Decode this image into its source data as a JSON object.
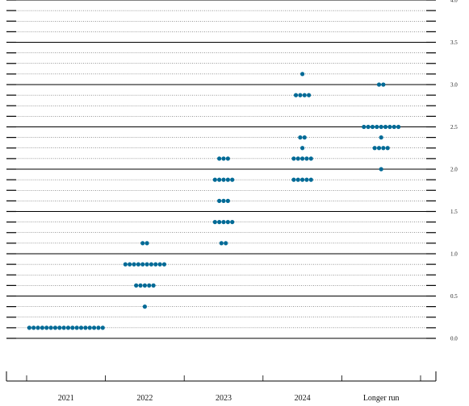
{
  "chart_data": {
    "type": "scatter",
    "title": "",
    "xlabel": "",
    "ylabel": "",
    "ylim": [
      -0.1,
      4.0
    ],
    "y_ticks": [
      "0.0",
      "0.5",
      "1.0",
      "1.5",
      "2.0",
      "2.5",
      "3.0",
      "3.5",
      "4.0"
    ],
    "categories": [
      "2021",
      "2022",
      "2023",
      "2024",
      "Longer run"
    ],
    "grid": true,
    "dot_color": "#006a96",
    "series": [
      {
        "category": "2021",
        "points": [
          {
            "rate": 0.125,
            "count": 18
          }
        ]
      },
      {
        "category": "2022",
        "points": [
          {
            "rate": 0.375,
            "count": 1
          },
          {
            "rate": 0.625,
            "count": 5
          },
          {
            "rate": 0.875,
            "count": 10
          },
          {
            "rate": 1.125,
            "count": 2
          }
        ]
      },
      {
        "category": "2023",
        "points": [
          {
            "rate": 1.125,
            "count": 2
          },
          {
            "rate": 1.375,
            "count": 5
          },
          {
            "rate": 1.625,
            "count": 3
          },
          {
            "rate": 1.875,
            "count": 5
          },
          {
            "rate": 2.125,
            "count": 3
          }
        ]
      },
      {
        "category": "2024",
        "points": [
          {
            "rate": 1.875,
            "count": 5
          },
          {
            "rate": 2.125,
            "count": 5
          },
          {
            "rate": 2.25,
            "count": 1
          },
          {
            "rate": 2.375,
            "count": 2
          },
          {
            "rate": 2.875,
            "count": 4
          },
          {
            "rate": 3.125,
            "count": 1
          }
        ]
      },
      {
        "category": "Longer run",
        "points": [
          {
            "rate": 2.0,
            "count": 1
          },
          {
            "rate": 2.25,
            "count": 4
          },
          {
            "rate": 2.375,
            "count": 1
          },
          {
            "rate": 2.5,
            "count": 9
          },
          {
            "rate": 3.0,
            "count": 2
          }
        ]
      }
    ]
  }
}
